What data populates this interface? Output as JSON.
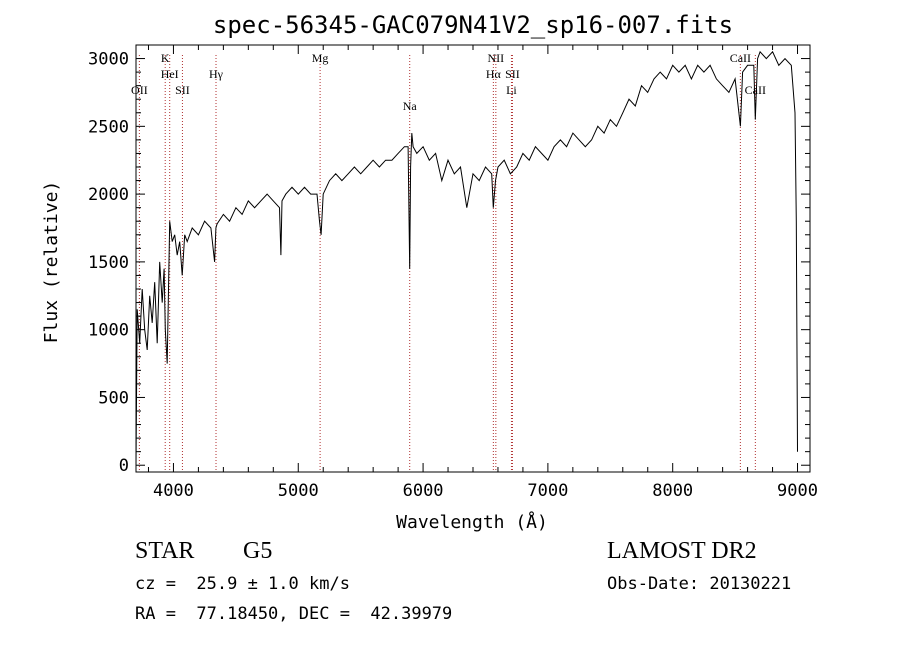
{
  "chart_data": {
    "type": "line",
    "title": "spec-56345-GAC079N41V2_sp16-007.fits",
    "xlabel": "Wavelength (Å)",
    "ylabel": "Flux (relative)",
    "xlim": [
      3700,
      9100
    ],
    "ylim": [
      -50,
      3100
    ],
    "x_ticks": [
      4000,
      5000,
      6000,
      7000,
      8000,
      9000
    ],
    "x_tick_labels": [
      "4000",
      "5000",
      "6000",
      "7000",
      "8000",
      "9000"
    ],
    "y_ticks": [
      0,
      500,
      1000,
      1500,
      2000,
      2500,
      3000
    ],
    "y_tick_labels": [
      "0",
      "500",
      "1000",
      "1500",
      "2000",
      "2500",
      "3000"
    ],
    "grid": false,
    "series": [
      {
        "color": "#000000",
        "x": [
          3700,
          3710,
          3730,
          3750,
          3770,
          3790,
          3810,
          3830,
          3850,
          3870,
          3890,
          3910,
          3925,
          3935,
          3950,
          3970,
          3990,
          4010,
          4030,
          4050,
          4070,
          4090,
          4110,
          4150,
          4200,
          4250,
          4300,
          4330,
          4340,
          4350,
          4400,
          4450,
          4500,
          4550,
          4600,
          4650,
          4700,
          4750,
          4800,
          4850,
          4861,
          4870,
          4900,
          4950,
          5000,
          5050,
          5100,
          5150,
          5170,
          5183,
          5200,
          5250,
          5300,
          5350,
          5400,
          5450,
          5500,
          5550,
          5600,
          5650,
          5700,
          5750,
          5800,
          5850,
          5880,
          5893,
          5900,
          5910,
          5920,
          5950,
          6000,
          6050,
          6100,
          6150,
          6200,
          6250,
          6300,
          6350,
          6400,
          6450,
          6500,
          6550,
          6563,
          6580,
          6600,
          6650,
          6700,
          6750,
          6800,
          6850,
          6900,
          6950,
          7000,
          7050,
          7100,
          7150,
          7200,
          7250,
          7300,
          7350,
          7400,
          7450,
          7500,
          7550,
          7600,
          7650,
          7700,
          7750,
          7800,
          7850,
          7900,
          7950,
          8000,
          8050,
          8100,
          8150,
          8200,
          8250,
          8300,
          8350,
          8400,
          8450,
          8500,
          8542,
          8560,
          8600,
          8650,
          8662,
          8680,
          8700,
          8750,
          8800,
          8850,
          8900,
          8950,
          8980,
          8990,
          9000
        ],
        "y": [
          0,
          1150,
          900,
          1300,
          1000,
          850,
          1250,
          1050,
          1350,
          900,
          1500,
          1200,
          1450,
          1000,
          750,
          1800,
          1650,
          1700,
          1550,
          1650,
          1400,
          1700,
          1650,
          1750,
          1700,
          1800,
          1750,
          1500,
          1750,
          1780,
          1850,
          1800,
          1900,
          1850,
          1950,
          1900,
          1950,
          2000,
          1950,
          1900,
          1550,
          1950,
          2000,
          2050,
          2000,
          2050,
          2000,
          2000,
          1800,
          1700,
          2000,
          2100,
          2150,
          2100,
          2150,
          2200,
          2150,
          2200,
          2250,
          2200,
          2250,
          2250,
          2300,
          2350,
          2350,
          1450,
          2200,
          2450,
          2350,
          2300,
          2350,
          2250,
          2300,
          2100,
          2250,
          2150,
          2200,
          1900,
          2150,
          2100,
          2200,
          2150,
          1900,
          2100,
          2200,
          2250,
          2150,
          2200,
          2300,
          2250,
          2350,
          2300,
          2250,
          2350,
          2400,
          2350,
          2450,
          2400,
          2350,
          2400,
          2500,
          2450,
          2550,
          2500,
          2600,
          2700,
          2650,
          2800,
          2750,
          2850,
          2900,
          2850,
          2950,
          2900,
          2950,
          2850,
          2950,
          2900,
          2950,
          2850,
          2800,
          2750,
          2850,
          2500,
          2900,
          2950,
          2950,
          2550,
          3000,
          3050,
          3000,
          3050,
          2950,
          3000,
          2950,
          2600,
          1800,
          100
        ]
      }
    ],
    "lines": [
      {
        "label": "OII",
        "x": 3727,
        "row": 2
      },
      {
        "label": "K",
        "x": 3934,
        "row": 0
      },
      {
        "label": "HeI",
        "x": 3970,
        "row": 1
      },
      {
        "label": "SII",
        "x": 4072,
        "row": 2
      },
      {
        "label": "Hγ",
        "x": 4341,
        "row": 1
      },
      {
        "label": "Mg",
        "x": 5175,
        "row": 0
      },
      {
        "label": "Na",
        "x": 5893,
        "row": 3
      },
      {
        "label": "NII",
        "x": 6583,
        "row": 0
      },
      {
        "label": "Hα",
        "x": 6563,
        "row": 1
      },
      {
        "label": "SII",
        "x": 6716,
        "row": 1
      },
      {
        "label": "Li",
        "x": 6708,
        "row": 2
      },
      {
        "label": "CaII",
        "x": 8542,
        "row": 0
      },
      {
        "label": "CaII",
        "x": 8662,
        "row": 2
      }
    ]
  },
  "info": {
    "object_class": "STAR",
    "subclass": "G5",
    "survey": "LAMOST DR2",
    "redshift": "cz =  25.9 ± 1.0 km/s",
    "obs_date": "Obs-Date: 20130221",
    "coords": "RA =  77.18450, DEC =  42.39979"
  }
}
